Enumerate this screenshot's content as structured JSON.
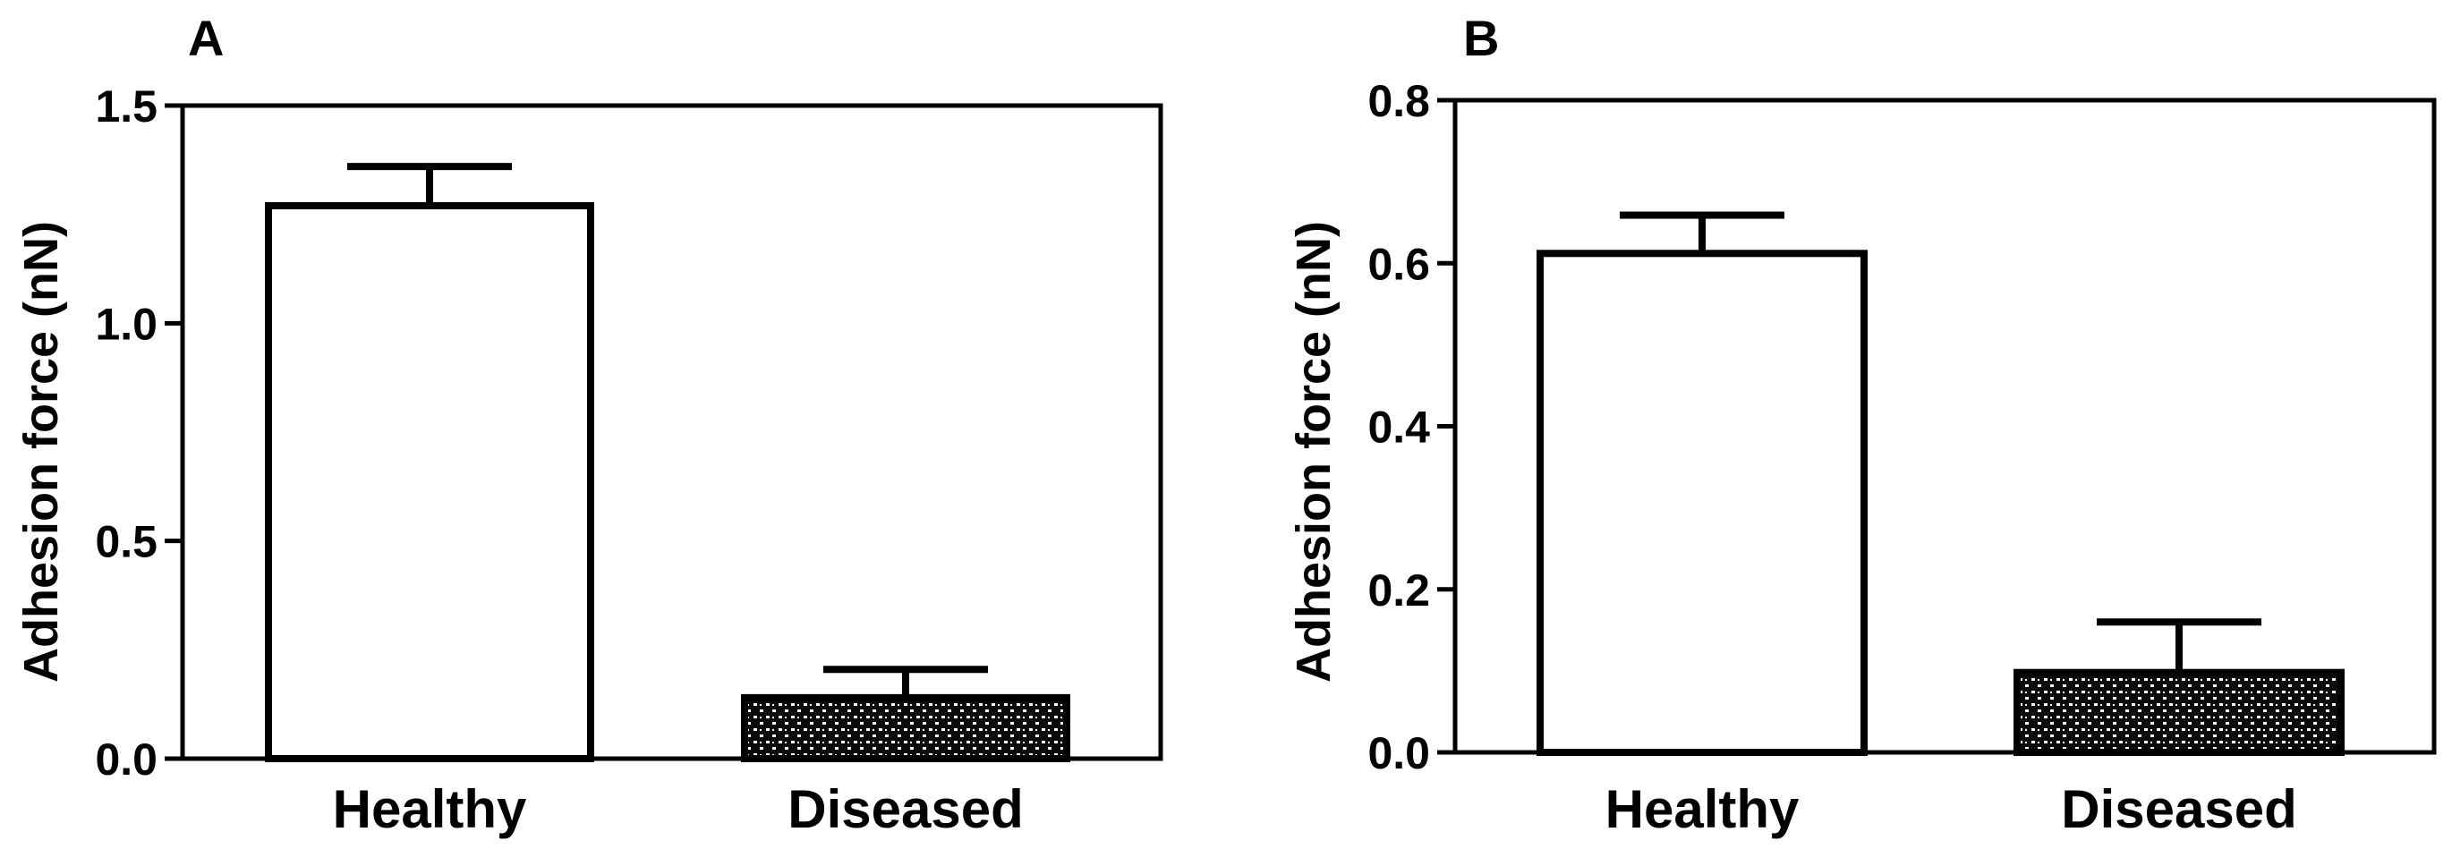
{
  "chart_data": [
    {
      "type": "bar",
      "panel_label": "A",
      "categories": [
        "Healthy",
        "Diseased"
      ],
      "values": [
        1.27,
        0.14
      ],
      "errors": [
        0.09,
        0.065
      ],
      "bar_fills": [
        "none",
        "stipple"
      ],
      "ylabel": "Adhesion force (nN)",
      "ylim": [
        0,
        1.5
      ],
      "yticks": [
        0.0,
        0.5,
        1.0,
        1.5
      ],
      "ytick_labels": [
        "0.0",
        "0.5",
        "1.0",
        "1.5"
      ],
      "grid": false,
      "legend": "none"
    },
    {
      "type": "bar",
      "panel_label": "B",
      "categories": [
        "Healthy",
        "Diseased"
      ],
      "values": [
        0.612,
        0.098
      ],
      "errors": [
        0.047,
        0.062
      ],
      "bar_fills": [
        "none",
        "stipple"
      ],
      "ylabel": "Adhesion force (nN)",
      "ylim": [
        0,
        0.8
      ],
      "yticks": [
        0.0,
        0.2,
        0.4,
        0.6,
        0.8
      ],
      "ytick_labels": [
        "0.0",
        "0.2",
        "0.4",
        "0.6",
        "0.8"
      ],
      "grid": false,
      "legend": "none"
    }
  ]
}
